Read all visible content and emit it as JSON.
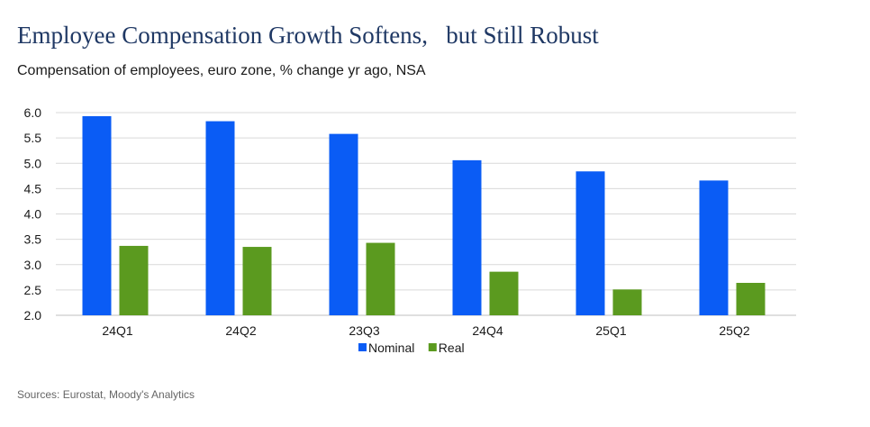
{
  "header": {
    "title": "Employee Compensation Growth Softens,   but Still Robust",
    "subtitle": "Compensation of employees, euro zone, % change yr ago, NSA"
  },
  "footer": {
    "source": "Sources: Eurostat, Moody's Analytics"
  },
  "chart_data": {
    "type": "bar",
    "title": "Employee Compensation Growth Softens,   but Still Robust",
    "subtitle": "Compensation of employees, euro zone, % change yr ago, NSA",
    "xlabel": "",
    "ylabel": "",
    "categories": [
      "24Q1",
      "24Q2",
      "23Q3",
      "24Q4",
      "25Q1",
      "25Q2"
    ],
    "series": [
      {
        "name": "Nominal",
        "color": "#0a5cf5",
        "values": [
          5.93,
          5.83,
          5.58,
          5.06,
          4.84,
          4.66
        ]
      },
      {
        "name": "Real",
        "color": "#5b9a1f",
        "values": [
          3.37,
          3.35,
          3.43,
          2.86,
          2.51,
          2.64
        ]
      }
    ],
    "ylim": [
      2.0,
      6.0
    ],
    "yticks": [
      "2.0",
      "2.5",
      "3.0",
      "3.5",
      "4.0",
      "4.5",
      "5.0",
      "5.5",
      "6.0"
    ],
    "grid": true,
    "legend_position": "bottom"
  }
}
